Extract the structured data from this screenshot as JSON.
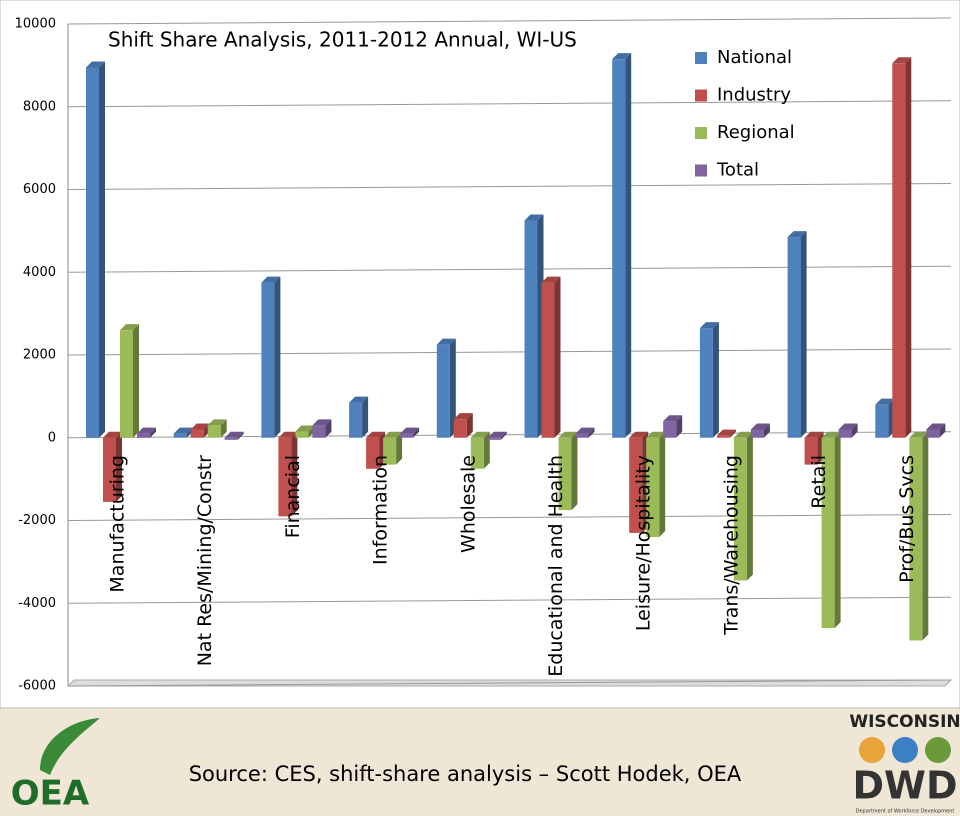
{
  "chart_data": {
    "type": "bar3d",
    "title": "Shift Share Analysis, 2011-2012 Annual, WI-US",
    "categories": [
      "Manufacturing",
      "Nat Res/Mining/Constr",
      "Financial",
      "Information",
      "Wholesale",
      "Educational and Health",
      "Leisure/Hospitality",
      "Trans/Warehousing",
      "Retail",
      "Prof/Bus Svcs"
    ],
    "series": [
      {
        "name": "National",
        "color": "#4f81bd",
        "values": [
          8950,
          100,
          3750,
          850,
          2250,
          5250,
          9150,
          2650,
          4850,
          800
        ]
      },
      {
        "name": "Industry",
        "color": "#c0504d",
        "values": [
          -1550,
          200,
          -1900,
          -750,
          450,
          3750,
          -2300,
          50,
          -650,
          9050
        ]
      },
      {
        "name": "Regional",
        "color": "#9bbb59",
        "values": [
          2600,
          300,
          150,
          -650,
          -750,
          -1750,
          -2400,
          -3450,
          -4600,
          -4900
        ]
      },
      {
        "name": "Total",
        "color": "#8064a2",
        "values": [
          100,
          -50,
          300,
          100,
          -50,
          100,
          400,
          200,
          200,
          200
        ]
      }
    ],
    "ylim": [
      -6000,
      10000
    ],
    "yticks": [
      -6000,
      -4000,
      -2000,
      0,
      2000,
      4000,
      6000,
      8000,
      10000
    ],
    "grid": true,
    "legend": "upper right"
  },
  "footer": {
    "source": "Source: CES, shift-share analysis – Scott Hodek, OEA",
    "logo_left": "OEA",
    "logo_right_top": "WISCONSIN",
    "logo_right_main": "DWD",
    "logo_right_sub": "Department of Workforce Development"
  }
}
